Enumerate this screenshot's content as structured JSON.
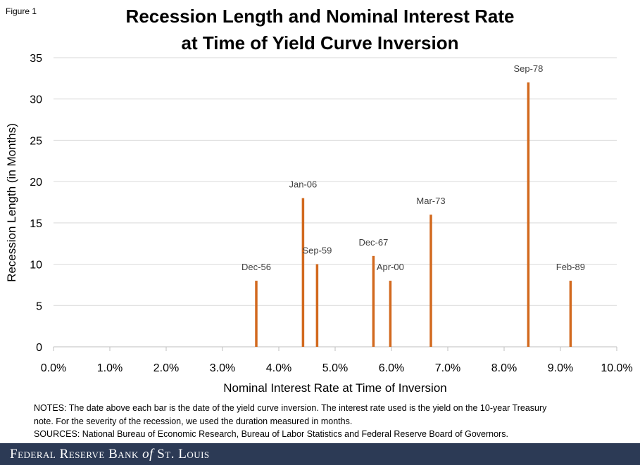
{
  "figure_label": "Figure 1",
  "title_line1": "Recession Length and Nominal Interest Rate",
  "title_line2": "at Time of Yield Curve Inversion",
  "chart_data": {
    "type": "bar",
    "title": "Recession Length and Nominal Interest Rate at Time of Yield Curve Inversion",
    "xlabel": "Nominal Interest Rate at Time of Inversion",
    "ylabel": "Recession Length (in Months)",
    "xlim": [
      0,
      10
    ],
    "ylim": [
      0,
      35
    ],
    "x_ticks": [
      "0.0%",
      "1.0%",
      "2.0%",
      "3.0%",
      "4.0%",
      "5.0%",
      "6.0%",
      "7.0%",
      "8.0%",
      "9.0%",
      "10.0%"
    ],
    "y_ticks": [
      "0",
      "5",
      "10",
      "15",
      "20",
      "25",
      "30",
      "35"
    ],
    "grid": "horizontal",
    "bar_color": "#d2691e",
    "points": [
      {
        "label": "Dec-56",
        "x": 3.6,
        "y": 8
      },
      {
        "label": "Jan-06",
        "x": 4.43,
        "y": 18
      },
      {
        "label": "Sep-59",
        "x": 4.68,
        "y": 10
      },
      {
        "label": "Dec-67",
        "x": 5.68,
        "y": 11
      },
      {
        "label": "Apr-00",
        "x": 5.98,
        "y": 8
      },
      {
        "label": "Mar-73",
        "x": 6.7,
        "y": 16
      },
      {
        "label": "Sep-78",
        "x": 8.43,
        "y": 32
      },
      {
        "label": "Feb-89",
        "x": 9.18,
        "y": 8
      }
    ]
  },
  "notes": {
    "line1": "NOTES: The date above each bar is the date of the yield curve inversion. The interest rate used is the yield on the 10-year Treasury",
    "line2": "note. For the severity of the recession, we used the duration measured in months.",
    "line3": "SOURCES: National Bureau of Economic Research, Bureau of Labor Statistics and Federal Reserve Board of Governors."
  },
  "footer": {
    "brand_part1": "Federal Reserve Bank",
    "brand_of": "of",
    "brand_part2": "St. Louis",
    "bg_color": "#2c3a55"
  }
}
